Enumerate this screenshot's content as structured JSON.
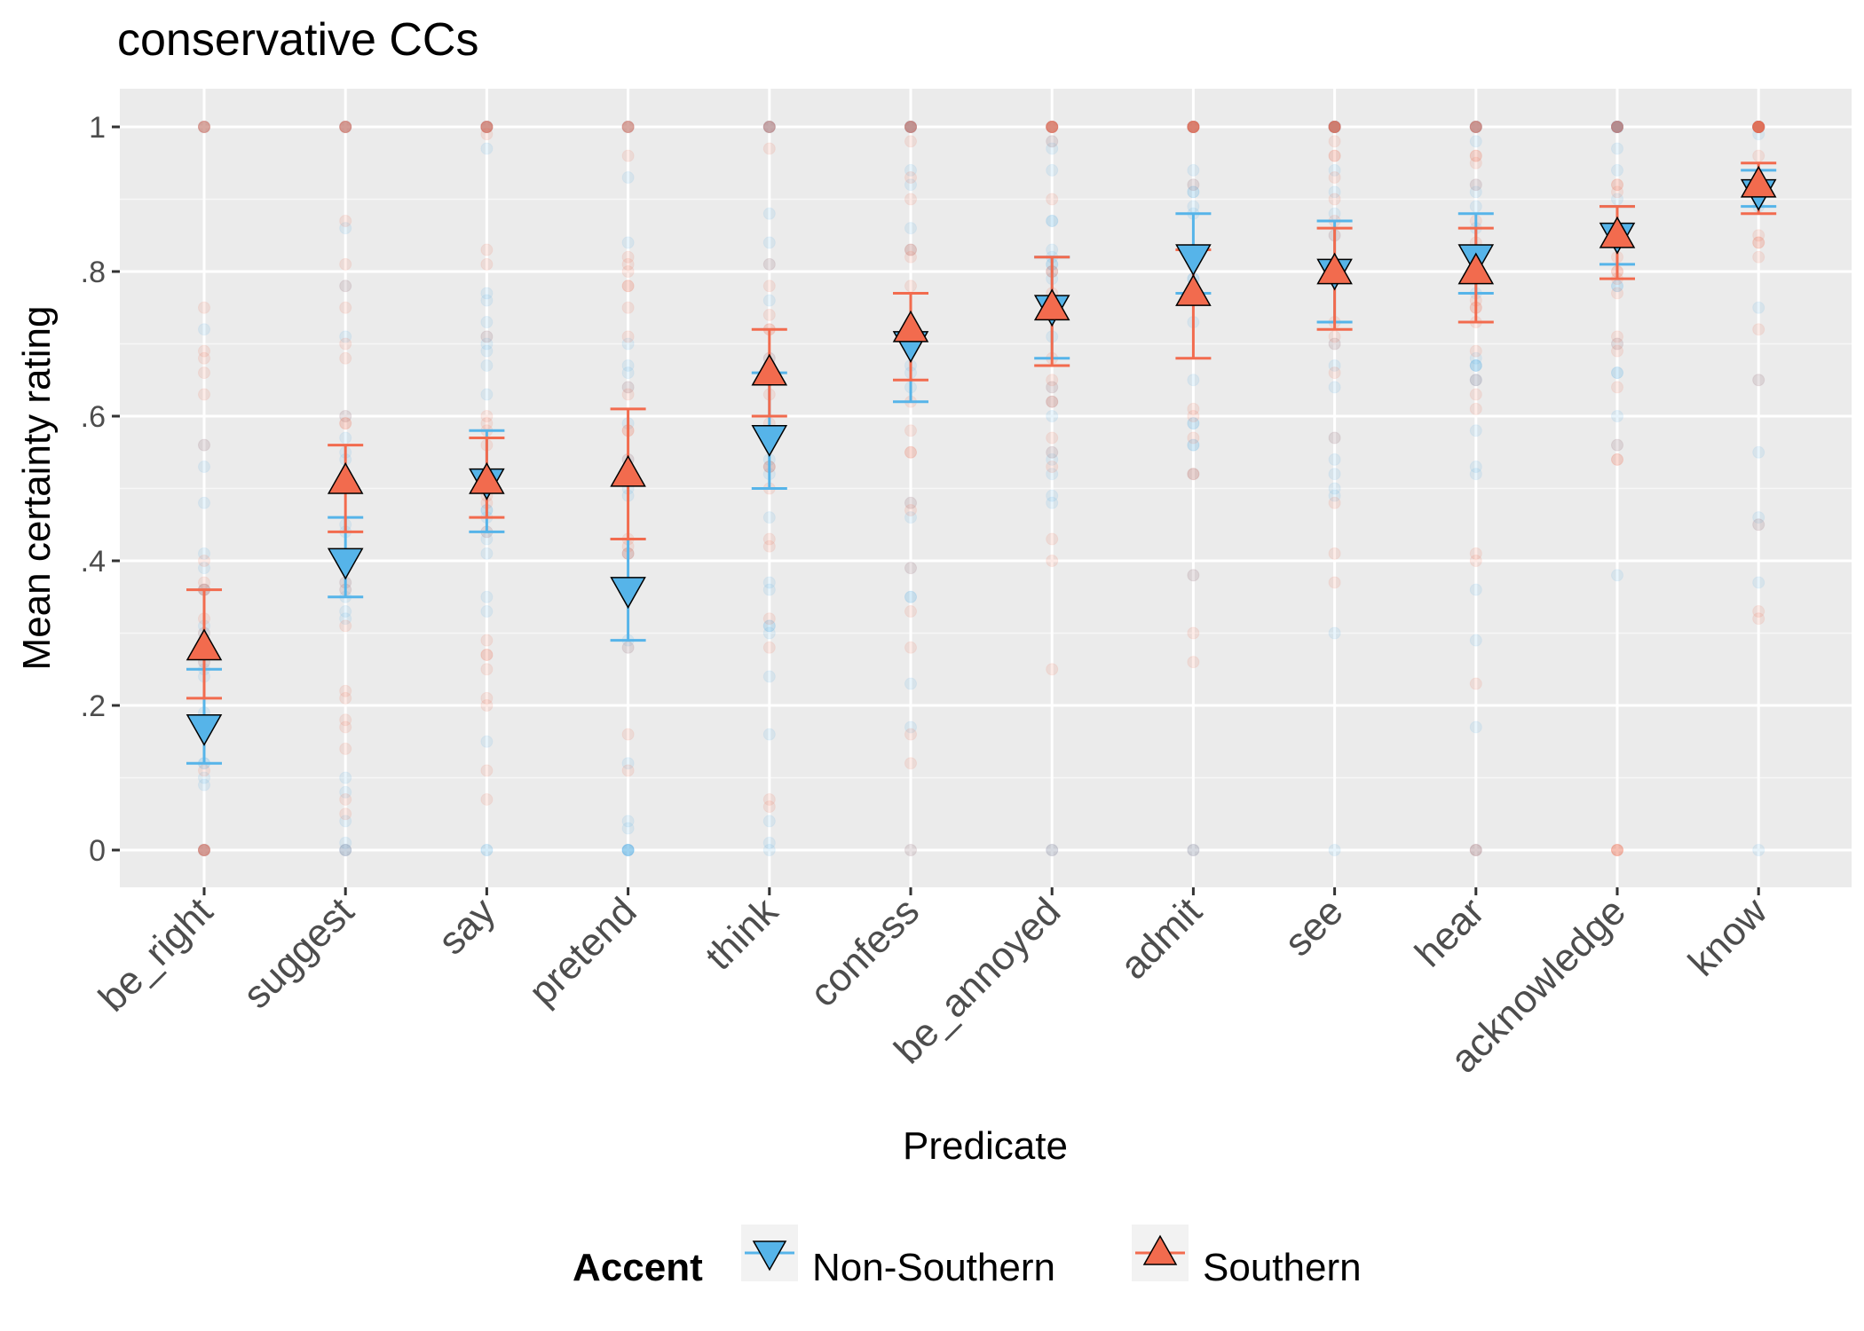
{
  "chart_data": {
    "type": "scatter",
    "title": "conservative CCs",
    "xlabel": "Predicate",
    "ylabel": "Mean certainty rating",
    "categories": [
      "be_right",
      "suggest",
      "say",
      "pretend",
      "think",
      "confess",
      "be_annoyed",
      "admit",
      "see",
      "hear",
      "acknowledge",
      "know"
    ],
    "ylim": [
      -0.05,
      1.05
    ],
    "yticks": [
      0,
      0.2,
      0.4,
      0.6,
      0.8,
      1
    ],
    "ytick_labels": [
      "0",
      ".2",
      ".4",
      ".6",
      ".8",
      "1"
    ],
    "grid": true,
    "legend": {
      "title": "Accent",
      "position": "bottom"
    },
    "series": [
      {
        "name": "Non-Southern",
        "color": "#56B4E9",
        "marker": "triangle-down",
        "mean": [
          0.17,
          0.4,
          0.51,
          0.36,
          0.57,
          0.7,
          0.75,
          0.82,
          0.8,
          0.82,
          0.85,
          0.91
        ],
        "ci_low": [
          0.12,
          0.35,
          0.44,
          0.29,
          0.5,
          0.62,
          0.68,
          0.77,
          0.73,
          0.77,
          0.81,
          0.89
        ],
        "ci_high": [
          0.25,
          0.46,
          0.58,
          0.43,
          0.66,
          0.77,
          0.82,
          0.88,
          0.87,
          0.88,
          0.89,
          0.94
        ]
      },
      {
        "name": "Southern",
        "color": "#F26B4E",
        "marker": "triangle-up",
        "mean": [
          0.28,
          0.51,
          0.51,
          0.52,
          0.66,
          0.72,
          0.75,
          0.77,
          0.8,
          0.8,
          0.85,
          0.92
        ],
        "ci_low": [
          0.21,
          0.44,
          0.46,
          0.43,
          0.6,
          0.65,
          0.67,
          0.68,
          0.72,
          0.73,
          0.79,
          0.88
        ],
        "ci_high": [
          0.36,
          0.56,
          0.57,
          0.61,
          0.72,
          0.77,
          0.82,
          0.83,
          0.86,
          0.86,
          0.89,
          0.95
        ]
      }
    ]
  }
}
